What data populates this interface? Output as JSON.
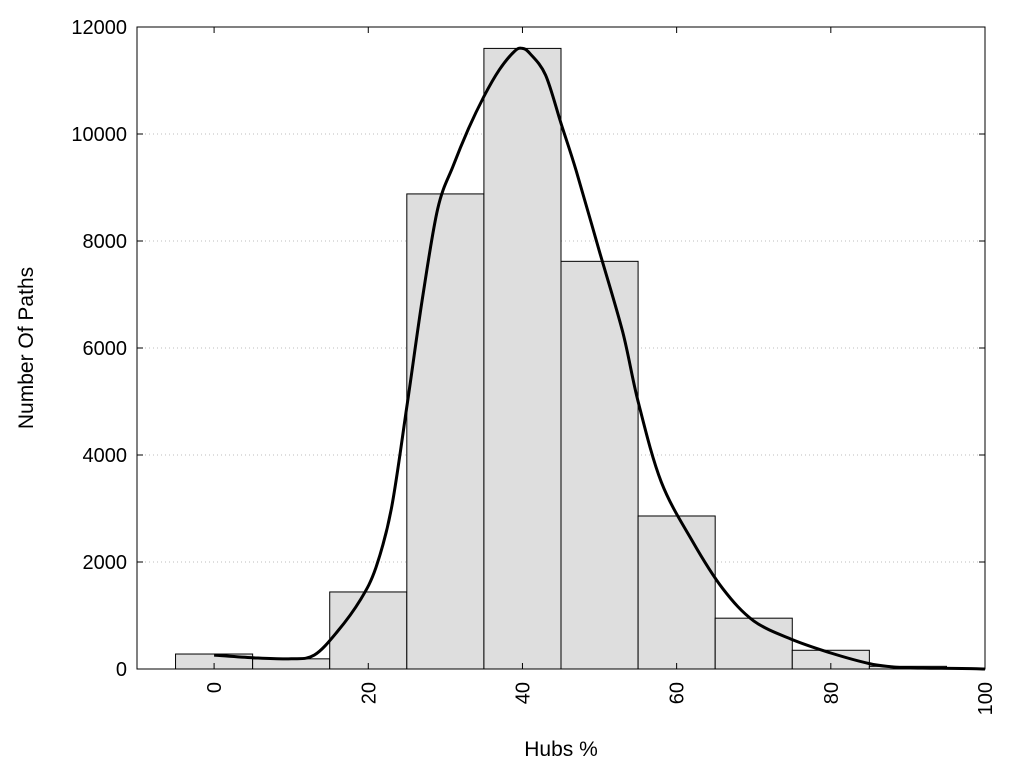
{
  "chart_data": {
    "type": "bar",
    "title": "",
    "xlabel": "Hubs %",
    "ylabel": "Number Of Paths",
    "xlim": [
      -10,
      100
    ],
    "ylim": [
      0,
      12000
    ],
    "xticks": [
      0,
      20,
      40,
      60,
      80,
      100
    ],
    "yticks": [
      0,
      2000,
      4000,
      6000,
      8000,
      10000,
      12000
    ],
    "grid": "horizontal dotted",
    "bin_width": 10,
    "bins": [
      {
        "center": 0,
        "value": 280
      },
      {
        "center": 10,
        "value": 190
      },
      {
        "center": 20,
        "value": 1440
      },
      {
        "center": 30,
        "value": 8880
      },
      {
        "center": 40,
        "value": 11600
      },
      {
        "center": 50,
        "value": 7620
      },
      {
        "center": 60,
        "value": 2860
      },
      {
        "center": 70,
        "value": 950
      },
      {
        "center": 80,
        "value": 350
      },
      {
        "center": 90,
        "value": 50
      },
      {
        "center": 100,
        "value": 15
      }
    ],
    "density_curve": {
      "x": [
        0,
        5,
        10,
        13,
        16,
        19,
        21,
        23,
        25,
        27,
        29,
        31,
        33,
        35,
        37,
        39,
        40,
        41,
        43,
        45,
        47,
        50,
        53,
        55,
        58,
        62,
        66,
        70,
        75,
        80,
        85,
        88,
        90,
        93,
        97,
        100
      ],
      "y": [
        260,
        210,
        190,
        260,
        700,
        1300,
        1900,
        3000,
        4900,
        6900,
        8600,
        9400,
        10100,
        10700,
        11200,
        11550,
        11600,
        11500,
        11100,
        10200,
        9300,
        7800,
        6300,
        5000,
        3500,
        2400,
        1500,
        900,
        550,
        300,
        100,
        40,
        20,
        15,
        10,
        0
      ]
    },
    "colors": {
      "bar_fill": "#dedede",
      "bar_stroke": "#000000",
      "curve": "#000000",
      "grid": "#bdbdbd"
    }
  }
}
